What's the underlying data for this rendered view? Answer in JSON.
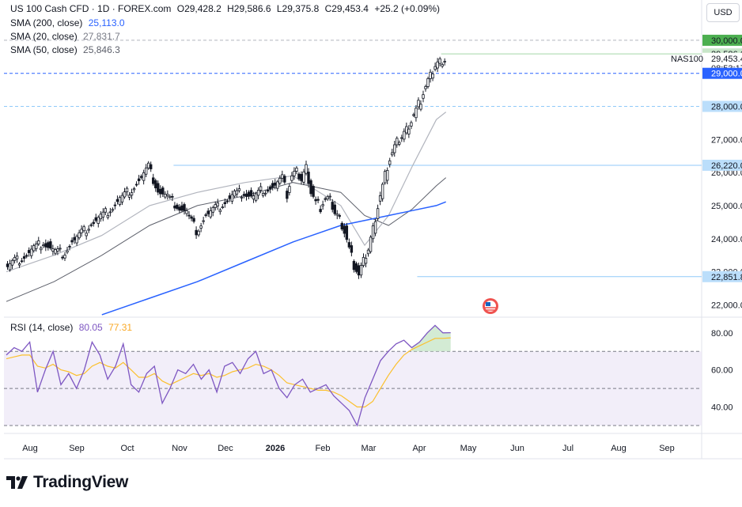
{
  "header": {
    "symbol": "US 100 Cash CFD · 1D · FOREX.com",
    "o": "O29,428.2",
    "h": "H29,586.6",
    "l": "L29,375.8",
    "c": "C29,453.4",
    "change": "+25.2 (+0.09%)",
    "sma200_label": "SMA (200, close)",
    "sma200_value": "25,113.0",
    "sma20_label": "SMA (20, close)",
    "sma20_value": "27,831.7",
    "sma50_label": "SMA (50, close)",
    "sma50_value": "25,846.3"
  },
  "currency_button": "USD",
  "rsi": {
    "label": "RSI (14, close)",
    "value": "80.05",
    "ma_value": "77.31"
  },
  "brand": "TradingView",
  "colors": {
    "up": "#131722",
    "down": "#131722",
    "sma200": "#2962ff",
    "sma20": "#b2b5be",
    "sma50": "#5d606b",
    "rsi": "#7e57c2",
    "rsi_ma": "#fbc02d",
    "level": "#2196f3",
    "axis_text": "#131722"
  },
  "chart_data": {
    "type": "line",
    "title": "US 100 Cash CFD",
    "x_tick_labels": [
      "Aug",
      "Sep",
      "Oct",
      "Nov",
      "Dec",
      "2026",
      "Feb",
      "Mar",
      "Apr",
      "May",
      "Jun",
      "Jul",
      "Aug",
      "Sep"
    ],
    "price_axis": {
      "ticks": [
        22000,
        23000,
        24000,
        25000,
        26000,
        27000,
        28000,
        29000,
        30000
      ],
      "tick_labels": [
        "22,000.0",
        "23,000.0",
        "24,000.0",
        "25,000.0",
        "26,000.0",
        "27,000.0",
        "28,000.0",
        "29,000.0",
        "30,000.0"
      ],
      "ylim": [
        21650,
        30500
      ],
      "markers": [
        {
          "label": "30,000.0",
          "value": 30000,
          "color": "#4caf50",
          "text": "#131722"
        },
        {
          "label": "29,586.6",
          "value": 29586.6,
          "color": "#c8e6c9",
          "text": "#131722"
        },
        {
          "label": "29,453.4",
          "value": 29453.4,
          "color": "#ffffff",
          "text": "#131722"
        },
        {
          "label": "08:53:17",
          "value": 29160,
          "color": "#ffffff",
          "text": "#131722"
        },
        {
          "label": "29,000.0",
          "value": 29000,
          "color": "#2962ff",
          "text": "#ffffff"
        },
        {
          "label": "28,000.0",
          "value": 28000,
          "color": "#bbdefb",
          "text": "#131722"
        },
        {
          "label": "26,220.0",
          "value": 26220,
          "color": "#bbdefb",
          "text": "#131722"
        },
        {
          "label": "22,851.8",
          "value": 22851.8,
          "color": "#bbdefb",
          "text": "#131722"
        }
      ],
      "symbol_tag": "NAS100"
    },
    "horizontal_levels": [
      {
        "value": 30000,
        "style": "dashed",
        "color": "#b2b5be"
      },
      {
        "value": 29000,
        "style": "dashed",
        "color": "#2962ff"
      },
      {
        "value": 28000,
        "style": "dashed",
        "color": "#90caf9"
      },
      {
        "value": 26220,
        "style": "solid",
        "color": "#90caf9"
      },
      {
        "value": 22851.8,
        "style": "solid",
        "color": "#90caf9"
      },
      {
        "value": 29586.6,
        "style": "solid",
        "color": "#a5d6a7"
      }
    ],
    "series": [
      {
        "name": "US 100 Cash CFD",
        "kind": "close",
        "x": [
          0,
          4,
          8,
          12,
          16,
          20,
          24,
          28,
          32,
          36,
          40,
          44,
          48,
          52,
          56,
          60,
          64,
          68,
          72,
          76,
          80,
          84,
          88,
          92,
          96,
          100,
          104,
          108,
          112,
          116,
          118,
          120,
          122,
          124,
          126,
          128,
          130,
          132,
          134,
          136,
          138,
          140,
          142,
          144,
          146,
          148,
          150
        ],
        "values": [
          23100,
          23300,
          23450,
          23700,
          23900,
          23650,
          23550,
          23900,
          24150,
          24450,
          24650,
          24900,
          25200,
          25450,
          25750,
          26150,
          25450,
          25250,
          25000,
          24800,
          24250,
          24700,
          24900,
          25100,
          25350,
          25400,
          25250,
          25500,
          25550,
          25800,
          25350,
          25900,
          26000,
          25800,
          26150,
          25450,
          25100,
          24950,
          25200,
          25150,
          24800,
          24600,
          24250,
          23700,
          23200,
          22900,
          23300
        ],
        "x2": [
          150,
          152,
          154,
          156,
          158,
          160,
          162,
          164,
          166,
          168,
          170,
          172,
          174,
          176,
          178,
          180,
          182,
          184,
          186,
          188,
          190,
          192,
          194,
          196,
          198,
          200,
          202,
          204,
          206,
          208,
          210,
          212,
          214,
          216,
          218,
          220,
          222,
          224,
          226,
          228
        ],
        "values2": [
          23300,
          23700,
          24300,
          25000,
          25600,
          26200,
          26600,
          26900,
          27100,
          27300,
          27600,
          27900,
          28200,
          28600,
          28900,
          29250,
          29350,
          29453.4,
          29453.4,
          29453.4,
          29453.4,
          29453.4,
          29453.4,
          29453.4,
          29453.4,
          29453.4,
          29453.4,
          29453.4,
          29453.4,
          29453.4,
          29453.4,
          29453.4,
          29453.4,
          29453.4,
          29453.4,
          29453.4,
          29453.4,
          29453.4,
          29453.4,
          29453.4
        ]
      },
      {
        "name": "SMA (200, close)",
        "x": [
          40,
          60,
          80,
          100,
          120,
          140,
          160,
          170,
          180,
          184
        ],
        "values": [
          21700,
          22200,
          22700,
          23300,
          23900,
          24400,
          24700,
          24850,
          25000,
          25113
        ]
      },
      {
        "name": "SMA (20, close)",
        "x": [
          0,
          20,
          40,
          60,
          80,
          100,
          120,
          140,
          150,
          160,
          170,
          180,
          184
        ],
        "values": [
          23000,
          23500,
          24100,
          25000,
          25400,
          25700,
          25900,
          25000,
          23800,
          24700,
          26200,
          27600,
          27831.7
        ]
      },
      {
        "name": "SMA (50, close)",
        "x": [
          0,
          20,
          40,
          60,
          80,
          100,
          120,
          140,
          150,
          160,
          170,
          180,
          184
        ],
        "values": [
          22100,
          22700,
          23500,
          24400,
          25000,
          25300,
          25700,
          25400,
          24700,
          24400,
          24900,
          25600,
          25846.3
        ]
      }
    ],
    "rsi": {
      "ylim": [
        27,
        88
      ],
      "ticks": [
        40,
        60,
        80
      ],
      "tick_labels": [
        "40.00",
        "60.00",
        "80.00"
      ],
      "band": [
        30,
        70
      ],
      "levels": [
        30,
        50,
        70
      ],
      "rsi_values": [
        68,
        72,
        70,
        75,
        48,
        60,
        70,
        52,
        58,
        50,
        60,
        75,
        68,
        55,
        62,
        74,
        52,
        48,
        58,
        62,
        42,
        50,
        60,
        58,
        63,
        55,
        60,
        48,
        62,
        64,
        58,
        66,
        70,
        58,
        60,
        50,
        45,
        52,
        55,
        48,
        50,
        52,
        46,
        42,
        38,
        30,
        45,
        55,
        65,
        70,
        74,
        76,
        72,
        75,
        80,
        84,
        80,
        80.05
      ],
      "ma_values": [
        66,
        67,
        68,
        68,
        62,
        61,
        63,
        60,
        59,
        57,
        58,
        62,
        64,
        62,
        61,
        64,
        60,
        56,
        56,
        58,
        54,
        52,
        54,
        56,
        58,
        57,
        58,
        56,
        57,
        59,
        60,
        61,
        63,
        62,
        60,
        57,
        53,
        52,
        51,
        50,
        49,
        49,
        48,
        46,
        43,
        40,
        40,
        43,
        50,
        57,
        63,
        68,
        71,
        73,
        75,
        77,
        77,
        77.31
      ]
    }
  }
}
